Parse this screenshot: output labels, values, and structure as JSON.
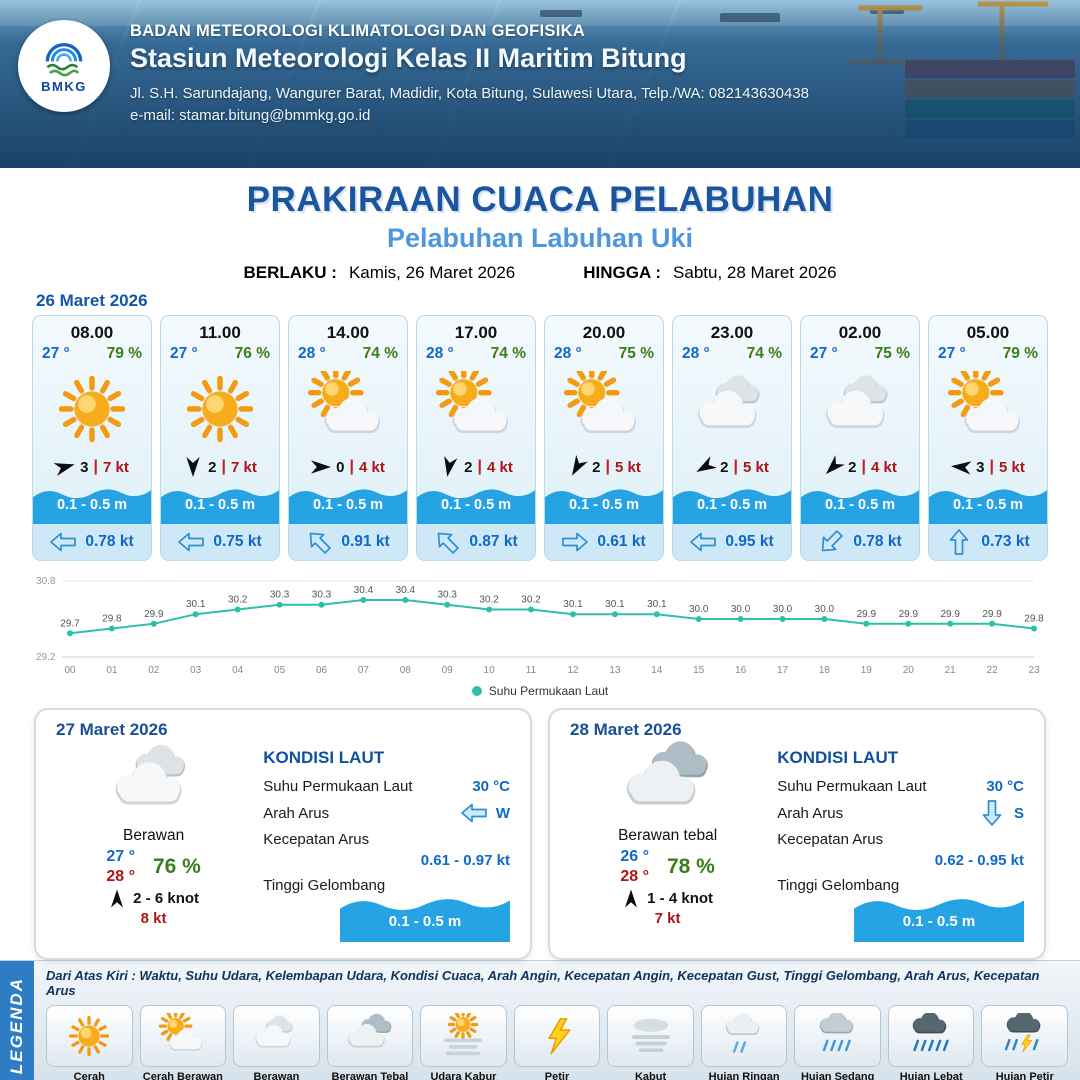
{
  "header": {
    "logo_text": "BMKG",
    "org": "BADAN METEOROLOGI KLIMATOLOGI DAN GEOFISIKA",
    "station": "Stasiun Meteorologi Kelas II Maritim Bitung",
    "address": "Jl. S.H. Sarundajang, Wangurer Barat, Madidir, Kota Bitung, Sulawesi Utara, Telp./WA: 082143630438",
    "email": "e-mail: stamar.bitung@bmmkg.go.id"
  },
  "title": {
    "main": "PRAKIRAAN CUACA PELABUHAN",
    "sub": "Pelabuhan Labuhan Uki",
    "berlaku_label": "BERLAKU :",
    "berlaku_value": "Kamis, 26 Maret 2026",
    "hingga_label": "HINGGA :",
    "hingga_value": "Sabtu, 28 Maret 2026"
  },
  "day1": {
    "date": "26 Maret 2026",
    "cards": [
      {
        "time": "08.00",
        "temp": "27 °",
        "rh": "79 %",
        "icon": "cerah",
        "wind_rot": -15,
        "wind_num": "3",
        "wind_kt": "7 kt",
        "wave": "0.1 - 0.5 m",
        "cur_rot": 0,
        "cur_kt": "0.78 kt"
      },
      {
        "time": "11.00",
        "temp": "27 °",
        "rh": "76 %",
        "icon": "cerah",
        "wind_rot": 90,
        "wind_num": "2",
        "wind_kt": "7 kt",
        "wave": "0.1 - 0.5 m",
        "cur_rot": 0,
        "cur_kt": "0.75 kt"
      },
      {
        "time": "14.00",
        "temp": "28 °",
        "rh": "74 %",
        "icon": "cerah-berawan",
        "wind_rot": 0,
        "wind_num": "0",
        "wind_kt": "4 kt",
        "wave": "0.1 - 0.5 m",
        "cur_rot": 45,
        "cur_kt": "0.91 kt"
      },
      {
        "time": "17.00",
        "temp": "28 °",
        "rh": "74 %",
        "icon": "cerah-berawan",
        "wind_rot": 100,
        "wind_num": "2",
        "wind_kt": "4 kt",
        "wave": "0.1 - 0.5 m",
        "cur_rot": 45,
        "cur_kt": "0.87 kt"
      },
      {
        "time": "20.00",
        "temp": "28 °",
        "rh": "75 %",
        "icon": "cerah-berawan",
        "wind_rot": 120,
        "wind_num": "2",
        "wind_kt": "5 kt",
        "wave": "0.1 - 0.5 m",
        "cur_rot": 180,
        "cur_kt": "0.61 kt"
      },
      {
        "time": "23.00",
        "temp": "28 °",
        "rh": "74 %",
        "icon": "berawan",
        "wind_rot": 150,
        "wind_num": "2",
        "wind_kt": "5 kt",
        "wave": "0.1 - 0.5 m",
        "cur_rot": 0,
        "cur_kt": "0.95 kt"
      },
      {
        "time": "02.00",
        "temp": "27 °",
        "rh": "75 %",
        "icon": "berawan",
        "wind_rot": 135,
        "wind_num": "2",
        "wind_kt": "4 kt",
        "wave": "0.1 - 0.5 m",
        "cur_rot": -45,
        "cur_kt": "0.78 kt"
      },
      {
        "time": "05.00",
        "temp": "27 °",
        "rh": "79 %",
        "icon": "cerah-berawan",
        "wind_rot": 185,
        "wind_num": "3",
        "wind_kt": "5 kt",
        "wave": "0.1 - 0.5 m",
        "cur_rot": 90,
        "cur_kt": "0.73 kt"
      }
    ]
  },
  "chart_data": {
    "type": "line",
    "legend": "Suhu Permukaan Laut",
    "x": [
      "00",
      "01",
      "02",
      "03",
      "04",
      "05",
      "06",
      "07",
      "08",
      "09",
      "10",
      "11",
      "12",
      "13",
      "14",
      "15",
      "16",
      "17",
      "18",
      "19",
      "20",
      "21",
      "22",
      "23"
    ],
    "series": [
      {
        "name": "Suhu Permukaan Laut",
        "values": [
          29.7,
          29.8,
          29.9,
          30.1,
          30.2,
          30.3,
          30.3,
          30.4,
          30.4,
          30.3,
          30.2,
          30.2,
          30.1,
          30.1,
          30.1,
          30.0,
          30.0,
          30.0,
          30.0,
          29.9,
          29.9,
          29.9,
          29.9,
          29.8
        ]
      }
    ],
    "ylim": [
      29.2,
      30.8
    ],
    "line_color": "#2cc0a8",
    "grid": false,
    "legend_position": "bottom"
  },
  "sea_labels": {
    "title": "KONDISI LAUT",
    "sst": "Suhu Permukaan Laut",
    "dir": "Arah Arus",
    "speed": "Kecepatan Arus",
    "wave": "Tinggi Gelombang"
  },
  "summary_days": [
    {
      "date": "27 Maret 2026",
      "icon": "berawan",
      "cond": "Berawan",
      "temp_min": "27 °",
      "temp_max": "28 °",
      "rh": "76 %",
      "wind_rot": -90,
      "wind_range": "2 - 6 knot",
      "gust": "8 kt",
      "sst": "30 °C",
      "cur_dir": "W",
      "cur_rot": 0,
      "cur_speed": "0.61 - 0.97 kt",
      "wave": "0.1 - 0.5 m"
    },
    {
      "date": "28 Maret 2026",
      "icon": "berawan-tebal",
      "cond": "Berawan tebal",
      "temp_min": "26 °",
      "temp_max": "28 °",
      "rh": "78 %",
      "wind_rot": -90,
      "wind_range": "1 - 4 knot",
      "gust": "7 kt",
      "sst": "30 °C",
      "cur_dir": "S",
      "cur_rot": -90,
      "cur_speed": "0.62 - 0.95 kt",
      "wave": "0.1 - 0.5 m"
    }
  ],
  "legend": {
    "title": "LEGENDA",
    "note": "Dari Atas Kiri : Waktu, Suhu Udara, Kelembapan Udara, Kondisi Cuaca, Arah Angin, Kecepatan Angin, Kecepatan Gust, Tinggi Gelombang, Arah Arus, Kecepatan Arus",
    "items": [
      {
        "icon": "cerah",
        "label": "Cerah"
      },
      {
        "icon": "cerah-berawan",
        "label": "Cerah Berawan"
      },
      {
        "icon": "berawan",
        "label": "Berawan"
      },
      {
        "icon": "berawan-tebal",
        "label": "Berawan Tebal"
      },
      {
        "icon": "udara-kabur",
        "label": "Udara Kabur"
      },
      {
        "icon": "petir",
        "label": "Petir"
      },
      {
        "icon": "kabut",
        "label": "Kabut"
      },
      {
        "icon": "hujan-ringan",
        "label": "Hujan Ringan"
      },
      {
        "icon": "hujan-sedang",
        "label": "Hujan Sedang"
      },
      {
        "icon": "hujan-lebat",
        "label": "Hujan Lebat"
      },
      {
        "icon": "hujan-petir",
        "label": "Hujan Petir"
      }
    ]
  }
}
